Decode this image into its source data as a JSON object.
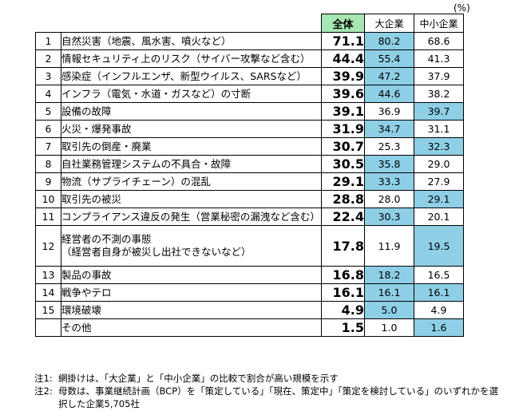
{
  "unit": "(%)",
  "header": {
    "total": "全体",
    "large": "大企業",
    "sme": "中小企業"
  },
  "rows": [
    {
      "no": "1",
      "label": "自然災害（地震、風水害、噴火など）",
      "total": "71.1",
      "large": "80.2",
      "sme": "68.6",
      "hl": "large"
    },
    {
      "no": "2",
      "label": "情報セキュリティ上のリスク（サイバー攻撃など含む）",
      "total": "44.4",
      "large": "55.4",
      "sme": "41.3",
      "hl": "large"
    },
    {
      "no": "3",
      "label": "感染症（インフルエンザ、新型ウイルス、SARSなど）",
      "total": "39.9",
      "large": "47.2",
      "sme": "37.9",
      "hl": "large"
    },
    {
      "no": "4",
      "label": "インフラ（電気・水道・ガスなど）の寸断",
      "total": "39.6",
      "large": "44.6",
      "sme": "38.2",
      "hl": "large"
    },
    {
      "no": "5",
      "label": "設備の故障",
      "total": "39.1",
      "large": "36.9",
      "sme": "39.7",
      "hl": "sme"
    },
    {
      "no": "6",
      "label": "火災・爆発事故",
      "total": "31.9",
      "large": "34.7",
      "sme": "31.1",
      "hl": "large"
    },
    {
      "no": "7",
      "label": "取引先の倒産・廃業",
      "total": "30.7",
      "large": "25.3",
      "sme": "32.3",
      "hl": "sme"
    },
    {
      "no": "8",
      "label": "自社業務管理システムの不具合・故障",
      "total": "30.5",
      "large": "35.8",
      "sme": "29.0",
      "hl": "large"
    },
    {
      "no": "9",
      "label": "物流（サプライチェーン）の混乱",
      "total": "29.1",
      "large": "33.3",
      "sme": "27.9",
      "hl": "large"
    },
    {
      "no": "10",
      "label": "取引先の被災",
      "total": "28.8",
      "large": "28.0",
      "sme": "29.1",
      "hl": "sme"
    },
    {
      "no": "11",
      "label": "コンプライアンス違反の発生（営業秘密の漏洩など含む）",
      "total": "22.4",
      "large": "30.3",
      "sme": "20.1",
      "hl": "large"
    },
    {
      "no": "12",
      "label": "経営者の不測の事態",
      "label2": "（経営者自身が被災し出社できないなど）",
      "total": "17.8",
      "large": "11.9",
      "sme": "19.5",
      "hl": "sme"
    },
    {
      "no": "13",
      "label": "製品の事故",
      "total": "16.8",
      "large": "18.2",
      "sme": "16.5",
      "hl": "large"
    },
    {
      "no": "14",
      "label": "戦争やテロ",
      "total": "16.1",
      "large": "16.1",
      "sme": "16.1",
      "hl": "both"
    },
    {
      "no": "15",
      "label": "環境破壊",
      "total": "4.9",
      "large": "5.0",
      "sme": "4.9",
      "hl": "large"
    },
    {
      "no": "",
      "label": "その他",
      "total": "1.5",
      "large": "1.0",
      "sme": "1.6",
      "hl": "sme"
    }
  ],
  "notes": [
    {
      "key": "注1:",
      "text": "網掛けは、「大企業」と「中小企業」の比較で割合が高い規模を示す"
    },
    {
      "key": "注2:",
      "text": "母数は、事業継続計画（BCP）を「策定している」「現在、策定中」「策定を検討している」のいずれかを選択した企業5,705社"
    }
  ]
}
